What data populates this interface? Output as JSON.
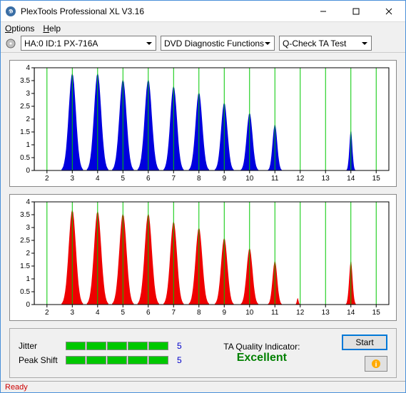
{
  "window": {
    "title": "PlexTools Professional XL V3.16"
  },
  "menu": {
    "options": "Options",
    "help": "Help"
  },
  "toolbar": {
    "drive": "HA:0 ID:1   PX-716A",
    "func": "DVD Diagnostic Functions",
    "test": "Q-Check TA Test"
  },
  "chart_top": {
    "type": "area-peaks",
    "color": "#0000dd",
    "bg": "#ffffff",
    "grid_color": "#00c800",
    "axis_color": "#000000",
    "ylim": [
      0,
      4
    ],
    "yticks": [
      0,
      0.5,
      1,
      1.5,
      2,
      2.5,
      3,
      3.5,
      4
    ],
    "xlim": [
      1.5,
      15.5
    ],
    "xticks": [
      2,
      3,
      4,
      5,
      6,
      7,
      8,
      9,
      10,
      11,
      12,
      13,
      14,
      15
    ],
    "peaks": [
      {
        "x": 3,
        "h": 3.8,
        "w": 0.85
      },
      {
        "x": 4,
        "h": 3.8,
        "w": 0.85
      },
      {
        "x": 5,
        "h": 3.55,
        "w": 0.85
      },
      {
        "x": 6,
        "h": 3.55,
        "w": 0.85
      },
      {
        "x": 7,
        "h": 3.3,
        "w": 0.8
      },
      {
        "x": 8,
        "h": 3.05,
        "w": 0.8
      },
      {
        "x": 9,
        "h": 2.65,
        "w": 0.75
      },
      {
        "x": 10,
        "h": 2.25,
        "w": 0.7
      },
      {
        "x": 11,
        "h": 1.8,
        "w": 0.55
      },
      {
        "x": 14,
        "h": 1.55,
        "w": 0.35
      }
    ],
    "tick_fontsize": 10
  },
  "chart_bottom": {
    "type": "area-peaks",
    "color": "#ee0000",
    "bg": "#ffffff",
    "grid_color": "#00c800",
    "axis_color": "#000000",
    "ylim": [
      0,
      4
    ],
    "yticks": [
      0,
      0.5,
      1,
      1.5,
      2,
      2.5,
      3,
      3.5,
      4
    ],
    "xlim": [
      1.5,
      15.5
    ],
    "xticks": [
      2,
      3,
      4,
      5,
      6,
      7,
      8,
      9,
      10,
      11,
      12,
      13,
      14,
      15
    ],
    "peaks": [
      {
        "x": 3,
        "h": 3.7,
        "w": 0.85
      },
      {
        "x": 4,
        "h": 3.65,
        "w": 0.85
      },
      {
        "x": 5,
        "h": 3.55,
        "w": 0.85
      },
      {
        "x": 6,
        "h": 3.55,
        "w": 0.85
      },
      {
        "x": 7,
        "h": 3.25,
        "w": 0.8
      },
      {
        "x": 8,
        "h": 3.0,
        "w": 0.8
      },
      {
        "x": 9,
        "h": 2.6,
        "w": 0.75
      },
      {
        "x": 10,
        "h": 2.2,
        "w": 0.7
      },
      {
        "x": 11,
        "h": 1.7,
        "w": 0.55
      },
      {
        "x": 11.9,
        "h": 0.25,
        "w": 0.2
      },
      {
        "x": 14,
        "h": 1.7,
        "w": 0.4
      }
    ],
    "tick_fontsize": 10
  },
  "stats": {
    "jitter_label": "Jitter",
    "jitter_segments": 5,
    "jitter_value": "5",
    "peakshift_label": "Peak Shift",
    "peakshift_segments": 5,
    "peakshift_value": "5",
    "ta_label": "TA Quality Indicator:",
    "ta_value": "Excellent",
    "start_label": "Start",
    "seg_fill": "#00c800"
  },
  "status": {
    "text": "Ready"
  }
}
